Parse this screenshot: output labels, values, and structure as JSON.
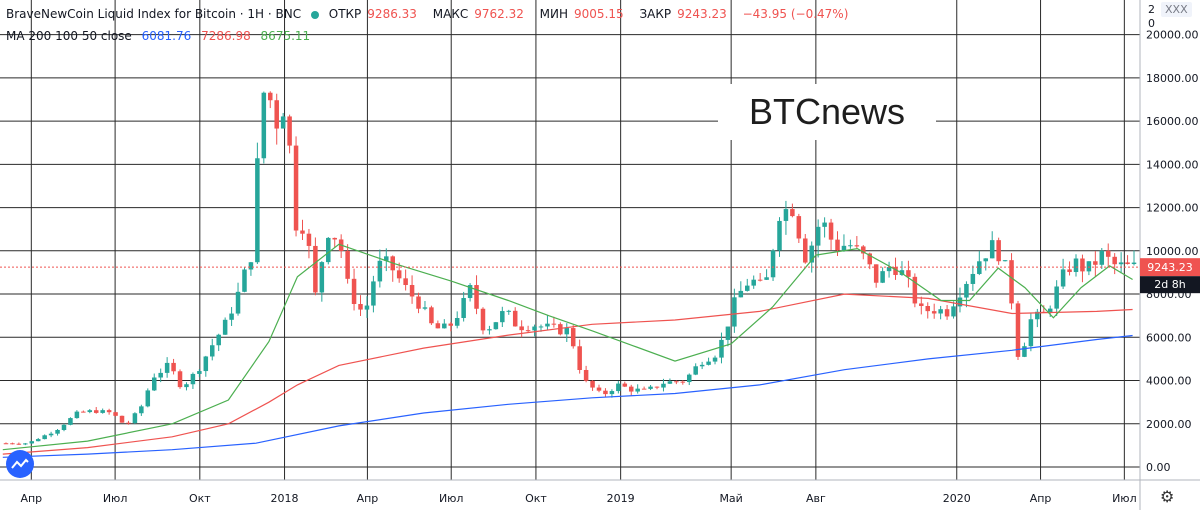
{
  "header": {
    "symbol": "BraveNewCoin Liquid Index for Bitcoin · 1H · BNC",
    "open_label": "ОТКР",
    "open": "9286.33",
    "high_label": "МАКС",
    "high": "9762.32",
    "low_label": "МИН",
    "low": "9005.15",
    "close_label": "ЗАКР",
    "close": "9243.23",
    "change": "−43.95 (−0.47%)",
    "ma_label": "MA 200 100 50 close",
    "ma200": "6081.76",
    "ma100": "7286.98",
    "ma50": "8675.11"
  },
  "watermark": "BTCnews",
  "corner": {
    "left": "2",
    "badge": "XXX",
    "right": "0"
  },
  "price_tag": {
    "value": "9243.23",
    "countdown": "2d 8h"
  },
  "colors": {
    "up": "#26a69a",
    "down": "#ef5350",
    "ma200": "#2962ff",
    "ma100": "#ef5350",
    "ma50": "#4caf50",
    "grid": "#2a2a2a",
    "price_line": "#ef5350"
  },
  "chart_data": {
    "type": "line",
    "title": "BraveNewCoin Liquid Index for Bitcoin",
    "y_ticks": [
      0,
      2000,
      4000,
      6000,
      8000,
      10000,
      12000,
      14000,
      16000,
      18000,
      20000
    ],
    "y_tick_labels": [
      "0.00",
      "2000.00",
      "4000.00",
      "6000.00",
      "8000.00",
      "10000.00",
      "12000.00",
      "14000.00",
      "16000.00",
      "18000.00",
      "20000.00"
    ],
    "ylim": [
      -600,
      21600
    ],
    "x_tick_labels": [
      "Апр",
      "Июл",
      "Окт",
      "2018",
      "Апр",
      "Июл",
      "Окт",
      "2019",
      "Май",
      "Авг",
      "2020",
      "Апр",
      "Июл"
    ],
    "x_tick_dates": [
      "2017-04-01",
      "2017-07-01",
      "2017-10-01",
      "2018-01-01",
      "2018-04-01",
      "2018-07-01",
      "2018-10-01",
      "2019-01-01",
      "2019-05-01",
      "2019-08-01",
      "2020-01-01",
      "2020-04-01",
      "2020-07-01"
    ],
    "xlim": [
      "2017-02-26",
      "2020-07-18"
    ],
    "grid": true,
    "last_price": 9243.23,
    "price_series": {
      "name": "BNC",
      "x": [
        "2017-03-01",
        "2017-04-01",
        "2017-05-01",
        "2017-05-25",
        "2017-06-12",
        "2017-07-01",
        "2017-07-16",
        "2017-08-01",
        "2017-08-15",
        "2017-09-01",
        "2017-09-15",
        "2017-10-01",
        "2017-10-20",
        "2017-11-01",
        "2017-11-15",
        "2017-11-29",
        "2017-12-07",
        "2017-12-17",
        "2017-12-22",
        "2018-01-06",
        "2018-01-16",
        "2018-01-28",
        "2018-02-06",
        "2018-02-20",
        "2018-03-05",
        "2018-03-15",
        "2018-04-01",
        "2018-04-15",
        "2018-04-28",
        "2018-05-15",
        "2018-06-01",
        "2018-06-15",
        "2018-07-01",
        "2018-07-15",
        "2018-07-25",
        "2018-08-10",
        "2018-09-01",
        "2018-09-15",
        "2018-10-01",
        "2018-10-20",
        "2018-11-10",
        "2018-11-25",
        "2018-12-15",
        "2019-01-01",
        "2019-01-15",
        "2019-02-01",
        "2019-02-20",
        "2019-03-15",
        "2019-04-02",
        "2019-04-20",
        "2019-05-10",
        "2019-05-25",
        "2019-06-10",
        "2019-06-26",
        "2019-07-10",
        "2019-07-25",
        "2019-08-10",
        "2019-08-25",
        "2019-09-10",
        "2019-09-25",
        "2019-10-10",
        "2019-10-26",
        "2019-11-10",
        "2019-11-25",
        "2019-12-10",
        "2019-12-25",
        "2020-01-10",
        "2020-02-01",
        "2020-02-15",
        "2020-03-01",
        "2020-03-12",
        "2020-03-25",
        "2020-04-10",
        "2020-04-30",
        "2020-05-10",
        "2020-05-25",
        "2020-06-10",
        "2020-06-25",
        "2020-07-10"
      ],
      "y": [
        1100,
        1100,
        1700,
        2500,
        2600,
        2500,
        1900,
        2700,
        4200,
        4700,
        3700,
        4400,
        5800,
        6600,
        8000,
        9800,
        14500,
        19200,
        15500,
        17000,
        11300,
        11200,
        7700,
        11000,
        10500,
        8200,
        7000,
        9300,
        9400,
        8300,
        7500,
        6400,
        6400,
        7300,
        8200,
        6300,
        7200,
        6500,
        6600,
        6400,
        6300,
        4000,
        3300,
        3800,
        3600,
        3500,
        3900,
        4000,
        4900,
        5300,
        7800,
        8700,
        8200,
        11800,
        12000,
        9600,
        11500,
        10200,
        10300,
        9700,
        8600,
        9400,
        8800,
        7200,
        7300,
        7200,
        8300,
        9800,
        10300,
        8800,
        4900,
        6800,
        7100,
        8900,
        9500,
        9100,
        9800,
        9300,
        9243
      ]
    },
    "series": [
      {
        "name": "MA 200",
        "x": [
          "2017-03-01",
          "2017-06-01",
          "2017-09-01",
          "2017-12-01",
          "2018-03-01",
          "2018-06-01",
          "2018-09-01",
          "2018-12-01",
          "2019-03-01",
          "2019-06-01",
          "2019-09-01",
          "2019-12-01",
          "2020-03-01",
          "2020-06-01",
          "2020-07-10"
        ],
        "y": [
          450,
          600,
          800,
          1100,
          1900,
          2500,
          2900,
          3200,
          3400,
          3800,
          4500,
          5000,
          5400,
          5900,
          6082
        ]
      },
      {
        "name": "MA 100",
        "x": [
          "2017-03-01",
          "2017-06-01",
          "2017-09-01",
          "2017-11-01",
          "2017-12-15",
          "2018-01-15",
          "2018-03-01",
          "2018-06-01",
          "2018-09-01",
          "2018-12-01",
          "2019-03-01",
          "2019-06-01",
          "2019-09-01",
          "2019-12-01",
          "2020-03-01",
          "2020-06-01",
          "2020-07-10"
        ],
        "y": [
          600,
          900,
          1400,
          2000,
          3000,
          3800,
          4700,
          5500,
          6100,
          6600,
          6800,
          7200,
          8000,
          7800,
          7100,
          7200,
          7287
        ]
      },
      {
        "name": "MA 50",
        "x": [
          "2017-03-01",
          "2017-06-01",
          "2017-09-01",
          "2017-11-01",
          "2017-12-15",
          "2018-01-15",
          "2018-03-01",
          "2018-05-01",
          "2018-07-01",
          "2018-09-01",
          "2018-10-15",
          "2018-12-01",
          "2019-01-15",
          "2019-03-01",
          "2019-05-01",
          "2019-06-15",
          "2019-08-01",
          "2019-09-15",
          "2019-11-01",
          "2019-12-15",
          "2020-01-15",
          "2020-02-15",
          "2020-03-15",
          "2020-04-15",
          "2020-05-15",
          "2020-06-15",
          "2020-07-10"
        ],
        "y": [
          800,
          1200,
          2000,
          3100,
          5800,
          8800,
          10300,
          9400,
          8600,
          7700,
          7000,
          6300,
          5600,
          4900,
          5700,
          7400,
          9800,
          10100,
          9000,
          7700,
          7700,
          9200,
          8300,
          6900,
          8300,
          9300,
          8675
        ]
      }
    ]
  }
}
